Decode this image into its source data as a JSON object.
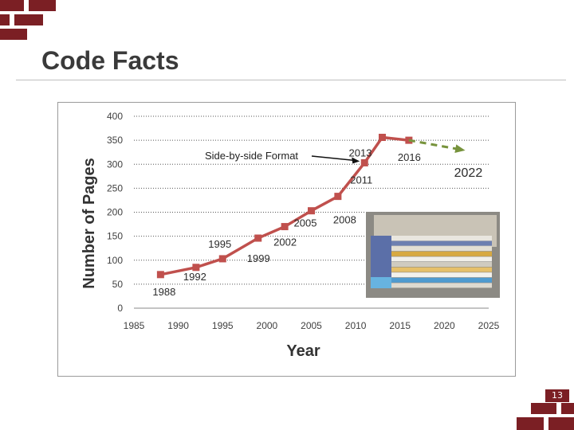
{
  "slide": {
    "title": "Code Facts",
    "page_number": "13",
    "accent_color": "#7b1f24"
  },
  "chart_data": {
    "type": "line",
    "xlabel": "Year",
    "ylabel": "Number of Pages",
    "xlim": [
      1985,
      2025
    ],
    "ylim": [
      0,
      400
    ],
    "xticks": [
      1985,
      1990,
      1995,
      2000,
      2005,
      2010,
      2015,
      2020,
      2025
    ],
    "yticks": [
      0,
      50,
      100,
      150,
      200,
      250,
      300,
      350,
      400
    ],
    "grid": true,
    "series": [
      {
        "color": "#c0504d",
        "style": "solid",
        "points": [
          {
            "x": 1988,
            "y": 70,
            "label": "1988"
          },
          {
            "x": 1992,
            "y": 85,
            "label": "1992"
          },
          {
            "x": 1995,
            "y": 103,
            "label": "1995"
          },
          {
            "x": 1999,
            "y": 146,
            "label": "1999"
          },
          {
            "x": 2002,
            "y": 170,
            "label": "2002"
          },
          {
            "x": 2005,
            "y": 203,
            "label": "2005"
          },
          {
            "x": 2008,
            "y": 233,
            "label": "2008"
          },
          {
            "x": 2011,
            "y": 303,
            "label": "2011"
          },
          {
            "x": 2013,
            "y": 356,
            "label": "2013"
          },
          {
            "x": 2016,
            "y": 350,
            "label": "2016"
          }
        ]
      },
      {
        "color": "#77933c",
        "style": "dashed",
        "points": [
          {
            "x": 2016,
            "y": 350
          },
          {
            "x": 2022,
            "y": 330,
            "label": "2022"
          }
        ]
      }
    ],
    "annotations": [
      {
        "text": "Side-by-side Format",
        "arrow_to": {
          "x": 2011,
          "y": 303
        }
      }
    ]
  }
}
